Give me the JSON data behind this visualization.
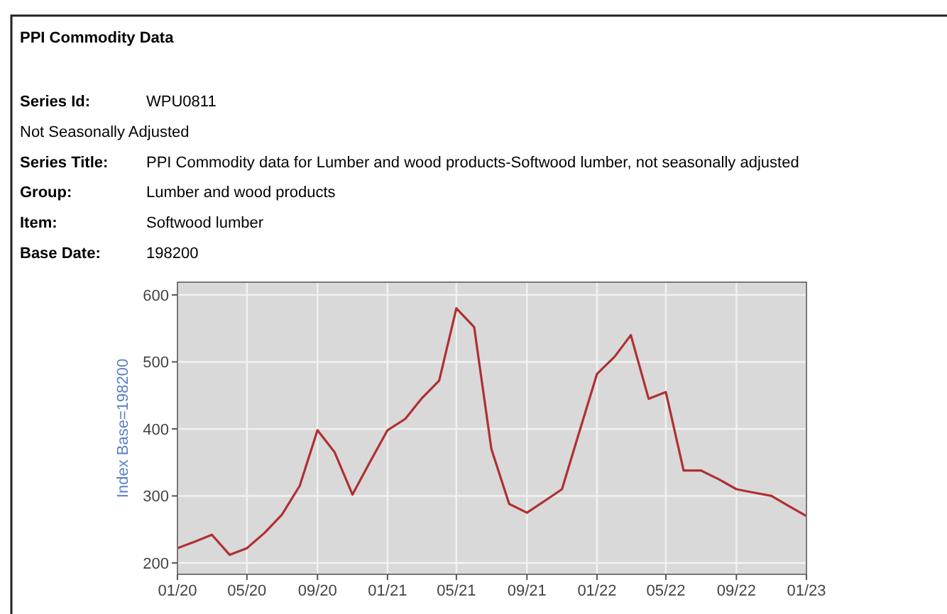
{
  "chart_data": {
    "type": "line",
    "title": "PPI Commodity Data",
    "annotations": [
      "Series Id: WPU0811",
      "Not Seasonally Adjusted",
      "Series Title: PPI Commodity data for Lumber and wood products-Softwood lumber, not seasonally adjusted",
      "Group: Lumber and wood products",
      "Item: Softwood lumber",
      "Base Date: 198200"
    ],
    "ylabel": "Index Base=198200",
    "x": [
      "2020-01",
      "2020-02",
      "2020-03",
      "2020-04",
      "2020-05",
      "2020-06",
      "2020-07",
      "2020-08",
      "2020-09",
      "2020-10",
      "2020-11",
      "2020-12",
      "2021-01",
      "2021-02",
      "2021-03",
      "2021-04",
      "2021-05",
      "2021-06",
      "2021-07",
      "2021-08",
      "2021-09",
      "2021-10",
      "2021-11",
      "2021-12",
      "2022-01",
      "2022-02",
      "2022-03",
      "2022-04",
      "2022-05",
      "2022-06",
      "2022-07",
      "2022-08",
      "2022-09",
      "2022-10",
      "2022-11",
      "2022-12",
      "2023-01"
    ],
    "series": [
      {
        "color": "#b03030",
        "values": [
          222,
          232,
          242,
          212,
          222,
          245,
          272,
          315,
          398,
          365,
          302,
          350,
          398,
          415,
          445,
          472,
          580,
          552,
          370,
          288,
          275,
          292,
          310,
          395,
          482,
          508,
          540,
          445,
          455,
          338,
          338,
          325,
          310,
          305,
          300,
          285,
          270
        ]
      }
    ],
    "xlim": [
      "2020-01",
      "2023-01"
    ],
    "xticks": [
      {
        "value": "2020-01",
        "label": "01/20"
      },
      {
        "value": "2020-05",
        "label": "05/20"
      },
      {
        "value": "2020-09",
        "label": "09/20"
      },
      {
        "value": "2021-01",
        "label": "01/21"
      },
      {
        "value": "2021-05",
        "label": "05/21"
      },
      {
        "value": "2021-09",
        "label": "09/21"
      },
      {
        "value": "2022-01",
        "label": "01/22"
      },
      {
        "value": "2022-05",
        "label": "05/22"
      },
      {
        "value": "2022-09",
        "label": "09/22"
      },
      {
        "value": "2023-01",
        "label": "01/23"
      }
    ],
    "ylim": [
      183,
      619
    ],
    "yticks": [
      200,
      300,
      400,
      500,
      600
    ],
    "grid": true,
    "marker": "none",
    "line_style": "solid"
  }
}
